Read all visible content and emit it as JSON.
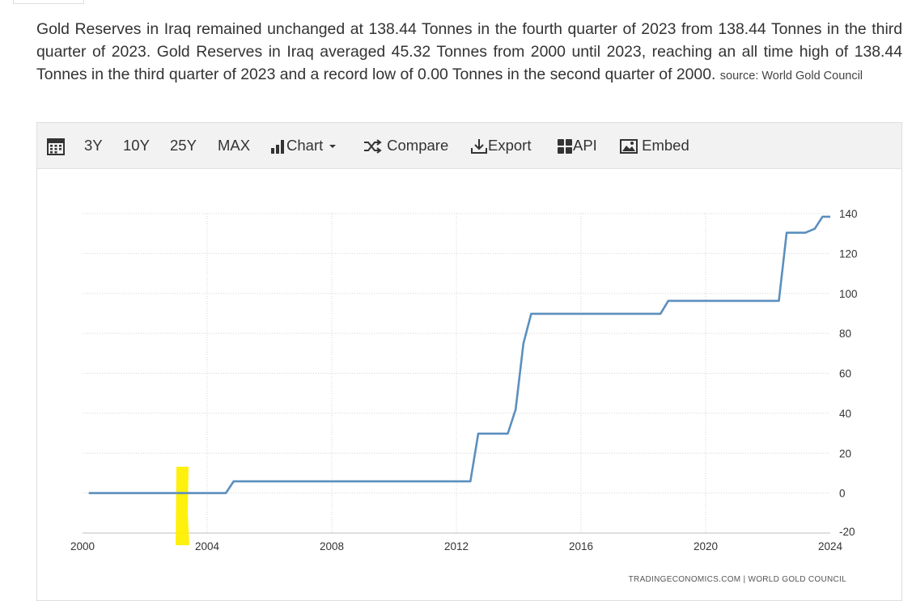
{
  "description": {
    "text": "Gold Reserves in Iraq remained unchanged at 138.44 Tonnes in the fourth quarter of 2023 from 138.44 Tonnes in the third quarter of 2023. Gold Reserves in Iraq averaged 45.32 Tonnes from 2000 until 2023, reaching an all time high of 138.44 Tonnes in the third quarter of 2023 and a record low of 0.00 Tonnes in the second quarter of 2000.",
    "source": "source: World Gold Council"
  },
  "toolbar": {
    "calendar_icon": "calendar-icon",
    "range_3y": "3Y",
    "range_10y": "10Y",
    "range_25y": "25Y",
    "range_max": "MAX",
    "chart_label": "Chart",
    "compare_label": "Compare",
    "export_label": "Export",
    "api_label": "API",
    "embed_label": "Embed"
  },
  "credit": "TRADINGECONOMICS.COM | WORLD GOLD COUNCIL",
  "chart_data": {
    "type": "line",
    "title": "",
    "xlabel": "",
    "ylabel": "",
    "xlim": [
      2000,
      2024
    ],
    "ylim": [
      -20,
      140
    ],
    "x_ticks": [
      "2000",
      "2004",
      "2008",
      "2012",
      "2016",
      "2020",
      "2024"
    ],
    "y_ticks": [
      "140",
      "120",
      "100",
      "80",
      "60",
      "40",
      "20",
      "0",
      "-20"
    ],
    "y_axis_side": "right",
    "grid": true,
    "series_color": "#5b8fbe",
    "highlight_color": "#ffef00",
    "series": [
      {
        "x": [
          2000.2,
          2004.6,
          2004.85,
          2012.45,
          2012.7,
          2013.65,
          2013.9,
          2014.15,
          2014.4,
          2018.55,
          2018.8,
          2021.0,
          2022.35,
          2022.6,
          2023.2,
          2023.5,
          2023.75,
          2024.0
        ],
        "y": [
          0,
          0,
          5.9,
          5.9,
          29.8,
          29.8,
          41.9,
          74.9,
          89.8,
          89.8,
          96.3,
          96.3,
          96.3,
          130.4,
          130.4,
          132.4,
          138.44,
          138.44
        ]
      }
    ]
  }
}
